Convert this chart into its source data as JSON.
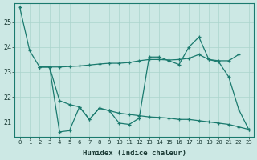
{
  "xlabel": "Humidex (Indice chaleur)",
  "bg_color": "#cce8e4",
  "line_color": "#1a7a6e",
  "grid_color": "#aad4cc",
  "ylim": [
    20.4,
    25.75
  ],
  "yticks": [
    21,
    22,
    23,
    24,
    25
  ],
  "xticks": [
    0,
    1,
    2,
    3,
    4,
    5,
    6,
    7,
    8,
    9,
    10,
    11,
    12,
    13,
    14,
    15,
    16,
    17,
    18,
    19,
    20,
    21,
    22,
    23
  ],
  "lineA_x": [
    0,
    1,
    2,
    3,
    4,
    5,
    6,
    7,
    8,
    9,
    10,
    11,
    12,
    13,
    14,
    15,
    16,
    17,
    18,
    19,
    20,
    21,
    22
  ],
  "lineA_y": [
    25.6,
    23.85,
    23.2,
    23.2,
    23.2,
    23.22,
    23.24,
    23.28,
    23.32,
    23.35,
    23.35,
    23.38,
    23.45,
    23.5,
    23.5,
    23.48,
    23.5,
    23.55,
    23.7,
    23.5,
    23.45,
    23.45,
    23.7
  ],
  "lineB_x": [
    2,
    3,
    4,
    5,
    6,
    7,
    8,
    9,
    10,
    11,
    12,
    13,
    14,
    15,
    16,
    17,
    18,
    19,
    20,
    21,
    22,
    23
  ],
  "lineB_y": [
    23.2,
    23.2,
    20.6,
    20.65,
    21.6,
    21.1,
    21.55,
    21.45,
    20.95,
    20.9,
    21.15,
    23.6,
    23.6,
    23.45,
    23.3,
    24.0,
    24.4,
    23.5,
    23.4,
    22.8,
    21.5,
    20.7
  ],
  "lineC_x": [
    2,
    3,
    4,
    5,
    6,
    7,
    8,
    9,
    10,
    11,
    12,
    13,
    14,
    15,
    16,
    17,
    18,
    19,
    20,
    21,
    22,
    23
  ],
  "lineC_y": [
    23.2,
    23.2,
    21.85,
    21.7,
    21.6,
    21.1,
    21.55,
    21.45,
    21.35,
    21.3,
    21.25,
    21.2,
    21.18,
    21.15,
    21.1,
    21.1,
    21.05,
    21.0,
    20.95,
    20.9,
    20.8,
    20.7
  ]
}
